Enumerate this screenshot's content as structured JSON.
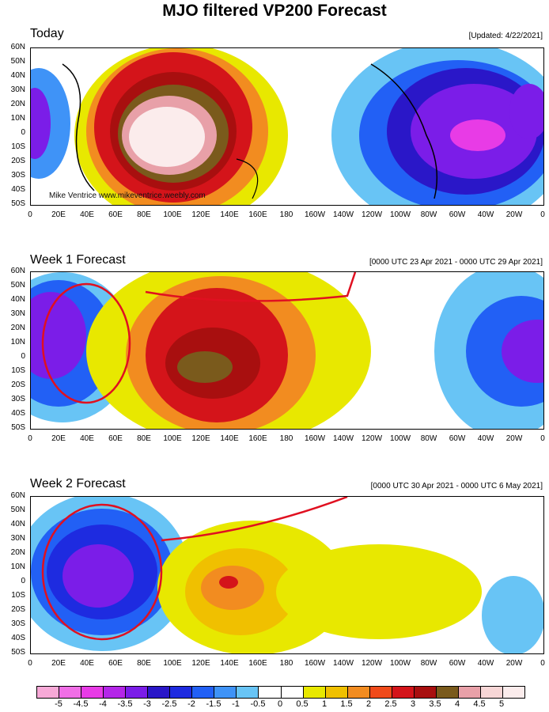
{
  "title": "MJO filtered VP200 Forecast",
  "credit": "Mike Ventrice www.mikeventrice.weebly.com",
  "lat_labels": [
    "60N",
    "50N",
    "40N",
    "30N",
    "20N",
    "10N",
    "0",
    "10S",
    "20S",
    "30S",
    "40S",
    "50S"
  ],
  "lon_labels": [
    "0",
    "20E",
    "40E",
    "60E",
    "80E",
    "100E",
    "120E",
    "140E",
    "160E",
    "180",
    "160W",
    "140W",
    "120W",
    "100W",
    "80W",
    "60W",
    "40W",
    "20W",
    "0"
  ],
  "panels": [
    {
      "title": "Today",
      "date": "[Updated: 4/22/2021]"
    },
    {
      "title": "Week 1 Forecast",
      "date": "[0000 UTC 23 Apr 2021 - 0000 UTC 29 Apr 2021]"
    },
    {
      "title": "Week 2 Forecast",
      "date": "[0000 UTC 30 Apr 2021 - 0000 UTC 6 May 2021]"
    }
  ],
  "colorbar": {
    "colors": [
      "#f7a9d7",
      "#f06ee6",
      "#e83be6",
      "#b426e8",
      "#7b1de8",
      "#2a17c8",
      "#1e2be0",
      "#2260f5",
      "#3f93f7",
      "#68c4f5",
      "#ffffff",
      "#ffffff",
      "#e8e800",
      "#f0c000",
      "#f28c20",
      "#f04a1a",
      "#d4141a",
      "#a80f0f",
      "#7a5a1c",
      "#e8a0a8",
      "#f7d6d6",
      "#fbecec"
    ],
    "labels": [
      "-5",
      "-4.5",
      "-4",
      "-3.5",
      "-3",
      "-2.5",
      "-2",
      "-1.5",
      "-1",
      "-0.5",
      "0",
      "0.5",
      "1",
      "1.5",
      "2",
      "2.5",
      "3",
      "3.5",
      "4",
      "4.5",
      "5"
    ]
  }
}
